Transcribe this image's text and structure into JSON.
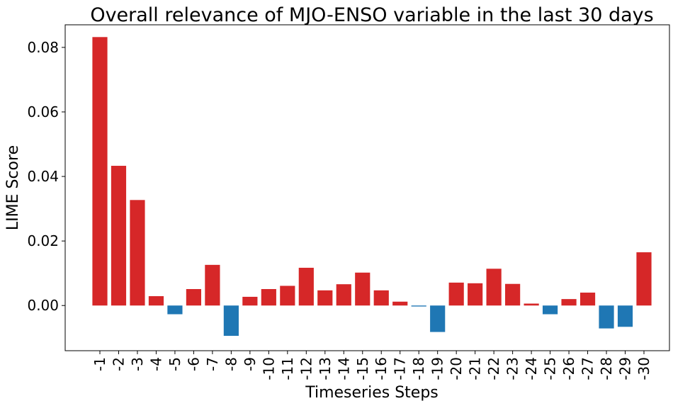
{
  "chart_data": {
    "type": "bar",
    "title": "Overall relevance of MJO-ENSO variable in the last 30 days",
    "xlabel": "Timeseries Steps",
    "ylabel": "LIME Score",
    "ylim": [
      -0.014,
      0.087
    ],
    "yticks": [
      "0.00",
      "0.02",
      "0.04",
      "0.06",
      "0.08"
    ],
    "ytick_values": [
      0.0,
      0.02,
      0.04,
      0.06,
      0.08
    ],
    "grid": false,
    "colors": {
      "positive": "#d62728",
      "negative": "#1f77b4"
    },
    "categories": [
      "-1",
      "-2",
      "-3",
      "-4",
      "-5",
      "-6",
      "-7",
      "-8",
      "-9",
      "-10",
      "-11",
      "-12",
      "-13",
      "-14",
      "-15",
      "-16",
      "-17",
      "-18",
      "-19",
      "-20",
      "-21",
      "-22",
      "-23",
      "-24",
      "-25",
      "-26",
      "-27",
      "-28",
      "-29",
      "-30"
    ],
    "values": [
      0.0832,
      0.0433,
      0.0327,
      0.0029,
      -0.0027,
      0.0051,
      0.0126,
      -0.0094,
      0.0027,
      0.0051,
      0.0061,
      0.0117,
      0.0047,
      0.0066,
      0.0102,
      0.0047,
      0.0012,
      -0.0003,
      -0.0082,
      0.0071,
      0.0069,
      0.0114,
      0.0067,
      0.0006,
      -0.0027,
      0.002,
      0.004,
      -0.0071,
      -0.0066,
      0.0165
    ]
  }
}
